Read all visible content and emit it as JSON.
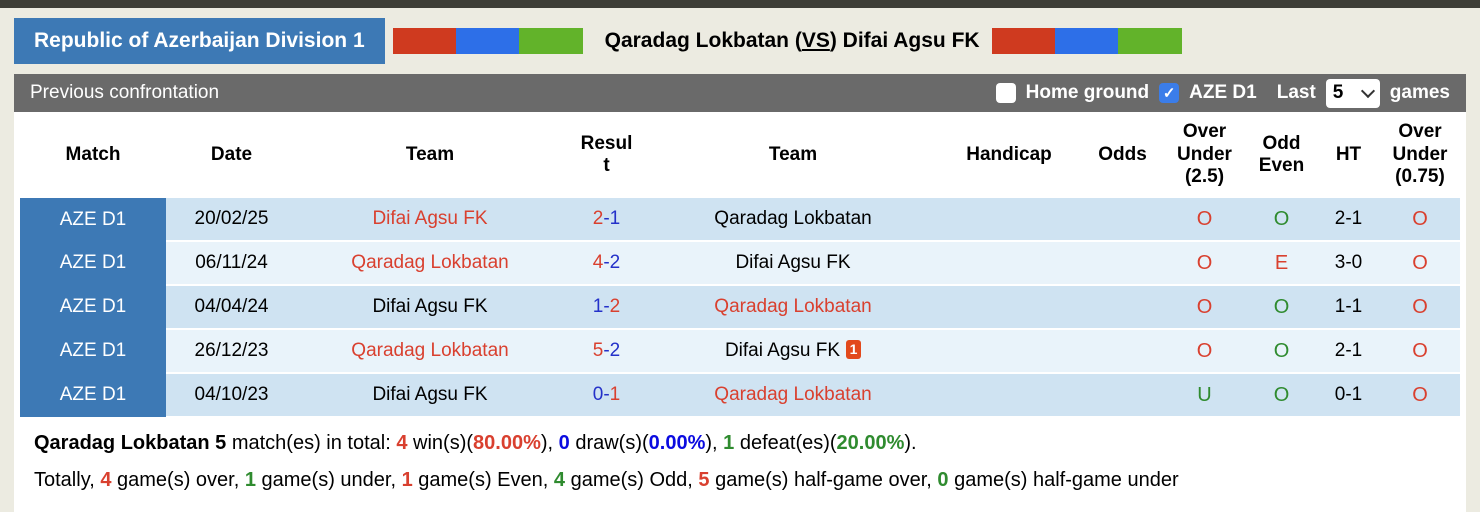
{
  "colors": {
    "hblue": "#3d79b5",
    "flag_red": "#cf3a1f",
    "flag_blue": "#2d6fe8",
    "flag_green": "#62b32a",
    "check_blue": "#3b7de9",
    "row_dark": "#cfe3f2",
    "row_light": "#e9f3fa",
    "red": "#d9402f",
    "navy": "#2431c9",
    "green": "#2f8b2f",
    "blue": "#0b0be0",
    "card_red": "#e2491c"
  },
  "header": {
    "league": "Republic of Azerbaijan Division 1",
    "title_pre": "Qaradag Lokbatan (",
    "title_vs": "VS",
    "title_post": ") Difai Agsu FK"
  },
  "toolbar": {
    "title": "Previous confrontation",
    "home_ground_label": "Home ground",
    "home_ground_checked": false,
    "league_label": "AZE D1",
    "league_checked": true,
    "last_label": "Last",
    "select_value": "5",
    "games_label": "games"
  },
  "table": {
    "headers": {
      "match": "Match",
      "date": "Date",
      "team1": "Team",
      "result": "Result",
      "team2": "Team",
      "handicap": "Handicap",
      "odds": "Odds",
      "ou25": "Over Under (2.5)",
      "oddeven": "Odd Even",
      "ht": "HT",
      "ou075": "Over Under (0.75)"
    },
    "score_separator": "-",
    "rows": [
      {
        "league": "AZE D1",
        "date": "20/02/25",
        "team1": {
          "name": "Difai Agsu FK",
          "color": "red"
        },
        "score": {
          "home": "2",
          "home_color": "red",
          "away": "1",
          "away_color": "navy"
        },
        "team2": {
          "name": "Qaradag Lokbatan",
          "color": "black",
          "card": ""
        },
        "handicap": "",
        "odds": "",
        "ou25": {
          "v": "O",
          "color": "red"
        },
        "oddeven": {
          "v": "O",
          "color": "green"
        },
        "ht": "2-1",
        "ou075": {
          "v": "O",
          "color": "red"
        }
      },
      {
        "league": "AZE D1",
        "date": "06/11/24",
        "team1": {
          "name": "Qaradag Lokbatan",
          "color": "red"
        },
        "score": {
          "home": "4",
          "home_color": "red",
          "away": "2",
          "away_color": "navy"
        },
        "team2": {
          "name": "Difai Agsu FK",
          "color": "black",
          "card": ""
        },
        "handicap": "",
        "odds": "",
        "ou25": {
          "v": "O",
          "color": "red"
        },
        "oddeven": {
          "v": "E",
          "color": "red"
        },
        "ht": "3-0",
        "ou075": {
          "v": "O",
          "color": "red"
        }
      },
      {
        "league": "AZE D1",
        "date": "04/04/24",
        "team1": {
          "name": "Difai Agsu FK",
          "color": "black"
        },
        "score": {
          "home": "1",
          "home_color": "navy",
          "away": "2",
          "away_color": "red"
        },
        "team2": {
          "name": "Qaradag Lokbatan",
          "color": "red",
          "card": ""
        },
        "handicap": "",
        "odds": "",
        "ou25": {
          "v": "O",
          "color": "red"
        },
        "oddeven": {
          "v": "O",
          "color": "green"
        },
        "ht": "1-1",
        "ou075": {
          "v": "O",
          "color": "red"
        }
      },
      {
        "league": "AZE D1",
        "date": "26/12/23",
        "team1": {
          "name": "Qaradag Lokbatan",
          "color": "red"
        },
        "score": {
          "home": "5",
          "home_color": "red",
          "away": "2",
          "away_color": "navy"
        },
        "team2": {
          "name": "Difai Agsu FK",
          "color": "black",
          "card": "1"
        },
        "handicap": "",
        "odds": "",
        "ou25": {
          "v": "O",
          "color": "red"
        },
        "oddeven": {
          "v": "O",
          "color": "green"
        },
        "ht": "2-1",
        "ou075": {
          "v": "O",
          "color": "red"
        }
      },
      {
        "league": "AZE D1",
        "date": "04/10/23",
        "team1": {
          "name": "Difai Agsu FK",
          "color": "black"
        },
        "score": {
          "home": "0",
          "home_color": "navy",
          "away": "1",
          "away_color": "red"
        },
        "team2": {
          "name": "Qaradag Lokbatan",
          "color": "red",
          "card": ""
        },
        "handicap": "",
        "odds": "",
        "ou25": {
          "v": "U",
          "color": "green"
        },
        "oddeven": {
          "v": "O",
          "color": "green"
        },
        "ht": "0-1",
        "ou075": {
          "v": "O",
          "color": "red"
        }
      }
    ]
  },
  "summary": {
    "line1": [
      {
        "text": "Qaradag Lokbatan 5",
        "bold": true,
        "color": "black"
      },
      {
        "text": " match(es) in total: "
      },
      {
        "text": "4",
        "bold": true,
        "color": "red"
      },
      {
        "text": " win(s)("
      },
      {
        "text": "80.00%",
        "bold": true,
        "color": "red"
      },
      {
        "text": "), "
      },
      {
        "text": "0",
        "bold": true,
        "color": "blue"
      },
      {
        "text": " draw(s)("
      },
      {
        "text": "0.00%",
        "bold": true,
        "color": "blue"
      },
      {
        "text": "), "
      },
      {
        "text": "1",
        "bold": true,
        "color": "green"
      },
      {
        "text": " defeat(es)("
      },
      {
        "text": "20.00%",
        "bold": true,
        "color": "green"
      },
      {
        "text": ")."
      }
    ],
    "line2": [
      {
        "text": "Totally, "
      },
      {
        "text": "4",
        "bold": true,
        "color": "red"
      },
      {
        "text": " game(s) over, "
      },
      {
        "text": "1",
        "bold": true,
        "color": "green"
      },
      {
        "text": " game(s) under, "
      },
      {
        "text": "1",
        "bold": true,
        "color": "red"
      },
      {
        "text": " game(s) Even, "
      },
      {
        "text": "4",
        "bold": true,
        "color": "green"
      },
      {
        "text": " game(s) Odd, "
      },
      {
        "text": "5",
        "bold": true,
        "color": "red"
      },
      {
        "text": " game(s) half-game over, "
      },
      {
        "text": "0",
        "bold": true,
        "color": "green"
      },
      {
        "text": " game(s) half-game under"
      }
    ]
  }
}
